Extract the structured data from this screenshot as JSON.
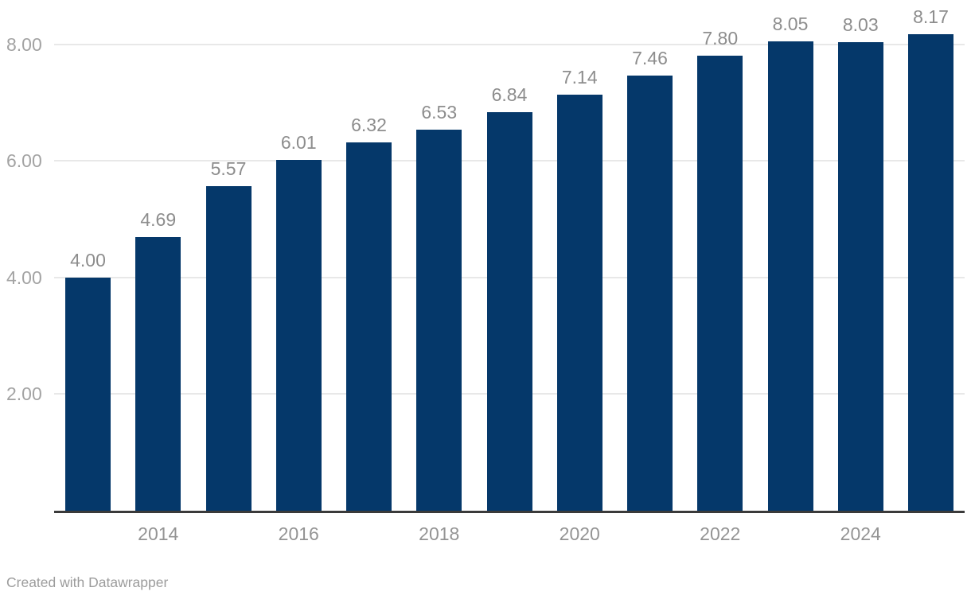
{
  "chart_data": {
    "type": "bar",
    "title": "",
    "categories": [
      2013,
      2014,
      2015,
      2016,
      2017,
      2018,
      2019,
      2020,
      2021,
      2022,
      2023,
      2024,
      2025
    ],
    "values": [
      4.0,
      4.69,
      5.57,
      6.01,
      6.32,
      6.53,
      6.84,
      7.14,
      7.46,
      7.8,
      8.05,
      8.03,
      8.17
    ],
    "value_labels": [
      "4.00",
      "4.69",
      "5.57",
      "6.01",
      "6.32",
      "6.53",
      "6.84",
      "7.14",
      "7.46",
      "7.80",
      "8.05",
      "8.03",
      "8.17"
    ],
    "xlabel": "",
    "ylabel": "",
    "x_axis": {
      "tick_labels": [
        "2014",
        "2016",
        "2018",
        "2020",
        "2022",
        "2024"
      ],
      "tick_years": [
        2014,
        2016,
        2018,
        2020,
        2022,
        2024
      ]
    },
    "y_axis": {
      "ticks": [
        {
          "value": 2,
          "label": "2.00"
        },
        {
          "value": 4,
          "label": "4.00"
        },
        {
          "value": 6,
          "label": "6.00"
        },
        {
          "value": 8,
          "label": "8.00"
        }
      ],
      "range": [
        0,
        8.8
      ]
    },
    "grid": "horizontal",
    "legend": "none",
    "colors": {
      "bar": "#05386a",
      "gridline": "#e8e8e8",
      "baseline": "#3a3a3a",
      "y_tick_text": "#a3a3a3",
      "x_tick_text": "#949494",
      "value_text": "#8d8d8d",
      "footer_text": "#9c9c9c"
    }
  },
  "footer": {
    "credit_label": "Created with Datawrapper"
  }
}
